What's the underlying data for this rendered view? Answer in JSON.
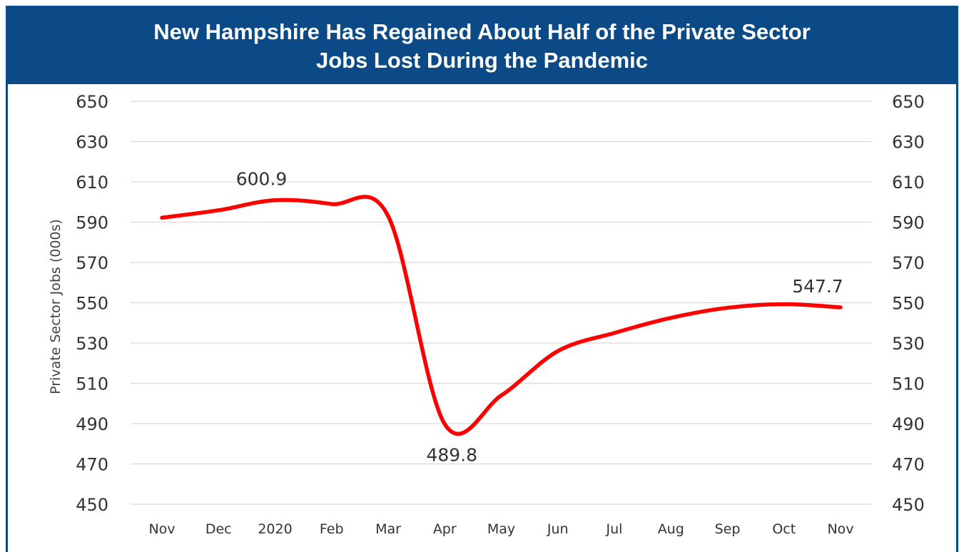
{
  "chart_data": {
    "type": "line",
    "title": "New Hampshire Has Regained About Half of the Private Sector Jobs Lost During the Pandemic",
    "ylabel": "Private Sector Jobs (000s)",
    "xlabel": "",
    "categories": [
      "Nov",
      "Dec",
      "2020",
      "Feb",
      "Mar",
      "Apr",
      "May",
      "Jun",
      "Jul",
      "Aug",
      "Sep",
      "Oct",
      "Nov"
    ],
    "values": [
      592.2,
      595.9,
      600.9,
      599.0,
      593.0,
      489.8,
      504.0,
      526.0,
      535.0,
      542.5,
      547.5,
      549.3,
      547.7
    ],
    "ylim": [
      450,
      650
    ],
    "yticks": [
      450,
      470,
      490,
      510,
      530,
      550,
      570,
      590,
      610,
      630,
      650
    ],
    "secondary_y_axis": true,
    "grid": true,
    "data_labels": [
      {
        "index": 2,
        "text": "600.9"
      },
      {
        "index": 5,
        "text": "489.8"
      },
      {
        "index": 12,
        "text": "547.7"
      }
    ],
    "colors": {
      "line": "#ff0000",
      "header": "#0b4a86",
      "grid": "#d9d9d9"
    }
  }
}
